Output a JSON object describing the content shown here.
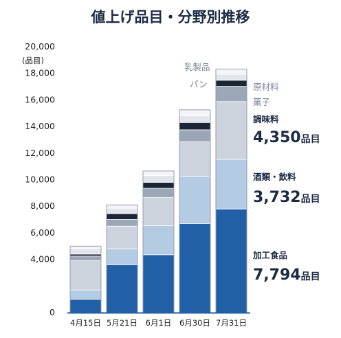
{
  "chart_data": {
    "type": "bar",
    "stacked": true,
    "title": "値上げ品目・分野別推移",
    "ylabel": "(品目)",
    "ylim": [
      0,
      20000
    ],
    "yticks": [
      0,
      4000,
      6000,
      8000,
      10000,
      12000,
      14000,
      16000,
      18000,
      20000
    ],
    "ytick_labels": [
      "0",
      "4,000",
      "6,000",
      "8,000",
      "10,000",
      "12,000",
      "14,000",
      "16,000",
      "18,000",
      "20,000"
    ],
    "categories": [
      "4月15日",
      "5月21日",
      "6月1日",
      "6月30日",
      "7月31日"
    ],
    "series": [
      {
        "name": "加工食品",
        "color": "#2160a6",
        "values": [
          1000,
          3600,
          4350,
          6700,
          7794
        ]
      },
      {
        "name": "酒類・飲料",
        "color": "#b4cbe4",
        "values": [
          700,
          1200,
          2200,
          3550,
          3732
        ]
      },
      {
        "name": "調味料",
        "color": "#ccd3dd",
        "values": [
          2200,
          1700,
          2100,
          2600,
          4350
        ]
      },
      {
        "name": "菓子",
        "color": "#9ba6b7",
        "values": [
          350,
          500,
          700,
          900,
          1150
        ]
      },
      {
        "name": "原材料",
        "color": "#1c2536",
        "values": [
          150,
          450,
          450,
          550,
          450
        ]
      },
      {
        "name": "パン",
        "color": "#e2e6ec",
        "values": [
          400,
          400,
          500,
          500,
          450
        ]
      },
      {
        "name": "乳製品",
        "color": "#f2f4f7",
        "values": [
          200,
          250,
          350,
          450,
          400
        ]
      }
    ],
    "legend": {
      "top": [
        "乳製品",
        "パン"
      ],
      "side_plain": [
        "原材料",
        "菓子"
      ],
      "highlights": [
        {
          "name": "調味料",
          "value": "4,350",
          "unit": "品目"
        },
        {
          "name": "酒類・飲料",
          "value": "3,732",
          "unit": "品目"
        },
        {
          "name": "加工食品",
          "value": "7,794",
          "unit": "品目"
        }
      ]
    }
  }
}
